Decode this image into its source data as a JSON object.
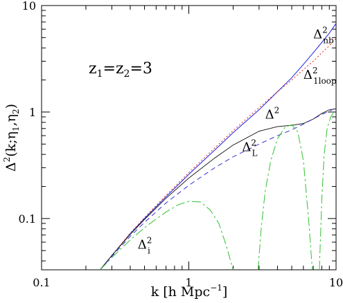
{
  "chart_data": {
    "type": "line",
    "xscale": "log",
    "yscale": "log",
    "xlim": [
      0.1,
      10
    ],
    "ylim": [
      0.033,
      10
    ],
    "xlabel": "k [h Mpc",
    "xlabel_sup": "−1",
    "xlabel_close": "]",
    "ylabel": "Δ",
    "ylabel_sup": "2",
    "ylabel_args": "(k;η",
    "ylabel_sub1": "1",
    "ylabel_mid": ",η",
    "ylabel_sub2": "2",
    "ylabel_close": ")",
    "annotation": {
      "text_parts": [
        "z",
        "1",
        "=z",
        "2",
        "=3"
      ]
    },
    "x_ticks": [
      {
        "value": 0.1,
        "label": "0.1"
      },
      {
        "value": 1,
        "label": "1"
      },
      {
        "value": 10,
        "label": "10"
      }
    ],
    "y_ticks": [
      {
        "value": 0.1,
        "label": "0.1"
      },
      {
        "value": 1,
        "label": "1"
      },
      {
        "value": 10,
        "label": "10"
      }
    ],
    "series": [
      {
        "id": "nb",
        "label_base": "Δ",
        "label_sup": "2",
        "label_sub": "nb",
        "label_at": [
          7.0,
          4.9
        ],
        "color": "#2020e0",
        "dash": "",
        "x": [
          0.25,
          0.3,
          0.4,
          0.5,
          0.7,
          1.0,
          1.5,
          2.0,
          3.0,
          4.0,
          5.0,
          6.0,
          7.0,
          8.0,
          9.0,
          10.0
        ],
        "y": [
          0.033,
          0.045,
          0.072,
          0.1,
          0.16,
          0.26,
          0.44,
          0.64,
          1.05,
          1.55,
          2.1,
          2.8,
          3.6,
          4.5,
          5.5,
          6.8
        ]
      },
      {
        "id": "1loop",
        "label_base": "Δ",
        "label_sup": "2",
        "label_sub": "1loop",
        "label_at": [
          6.0,
          2.05
        ],
        "color": "#e02020",
        "dash": "2,3",
        "x": [
          0.25,
          0.3,
          0.4,
          0.5,
          0.7,
          1.0,
          1.5,
          2.0,
          3.0,
          4.0,
          5.0,
          6.0,
          7.0,
          8.0,
          9.0,
          10.0
        ],
        "y": [
          0.033,
          0.045,
          0.073,
          0.102,
          0.165,
          0.27,
          0.46,
          0.67,
          1.1,
          1.55,
          2.0,
          2.5,
          3.0,
          3.6,
          4.2,
          4.9
        ]
      },
      {
        "id": "total",
        "label_base": "Δ",
        "label_sup": "2",
        "label_sub": "",
        "label_at": [
          3.3,
          0.87
        ],
        "color": "#222222",
        "dash": "",
        "x": [
          0.25,
          0.3,
          0.4,
          0.5,
          0.7,
          1.0,
          1.5,
          2.0,
          3.0,
          4.0,
          5.0,
          6.0,
          7.0,
          8.0,
          9.0,
          10.0
        ],
        "y": [
          0.033,
          0.045,
          0.071,
          0.098,
          0.155,
          0.24,
          0.37,
          0.49,
          0.66,
          0.73,
          0.75,
          0.78,
          0.86,
          0.97,
          1.05,
          1.07
        ]
      },
      {
        "id": "linear",
        "label_base": "Δ",
        "label_sup": "2",
        "label_sub": "L",
        "label_at": [
          2.3,
          0.43
        ],
        "color": "#3030d0",
        "dash": "7,5",
        "x": [
          0.25,
          0.3,
          0.4,
          0.5,
          0.7,
          1.0,
          1.5,
          2.0,
          3.0,
          4.0,
          5.0,
          6.0,
          7.0,
          8.0,
          9.0,
          10.0
        ],
        "y": [
          0.033,
          0.044,
          0.068,
          0.092,
          0.14,
          0.205,
          0.3,
          0.38,
          0.5,
          0.6,
          0.68,
          0.77,
          0.86,
          0.95,
          1.02,
          1.1
        ]
      },
      {
        "id": "interference",
        "label_base": "Δ",
        "label_sup": "2",
        "label_sub": "i",
        "label_at": [
          0.45,
          0.052
        ],
        "color": "#30c030",
        "dash": "13,4,3,4",
        "segments": [
          {
            "x": [
              0.25,
              0.3,
              0.4,
              0.5,
              0.6,
              0.7,
              0.85,
              1.0,
              1.2,
              1.4,
              1.6,
              1.8,
              2.0
            ],
            "y": [
              0.033,
              0.043,
              0.063,
              0.082,
              0.099,
              0.115,
              0.135,
              0.145,
              0.143,
              0.12,
              0.09,
              0.055,
              0.033
            ]
          },
          {
            "x": [
              2.95,
              3.1,
              3.3,
              3.6,
              4.0,
              4.5,
              5.0,
              5.5,
              6.0,
              6.5,
              6.9
            ],
            "y": [
              0.033,
              0.08,
              0.18,
              0.35,
              0.56,
              0.72,
              0.76,
              0.65,
              0.35,
              0.1,
              0.033
            ]
          },
          {
            "x": [
              7.7,
              8.0,
              8.3,
              8.7,
              9.2,
              9.6,
              10.0
            ],
            "y": [
              0.033,
              0.15,
              0.4,
              0.7,
              0.9,
              0.98,
              1.0
            ]
          }
        ]
      }
    ]
  }
}
